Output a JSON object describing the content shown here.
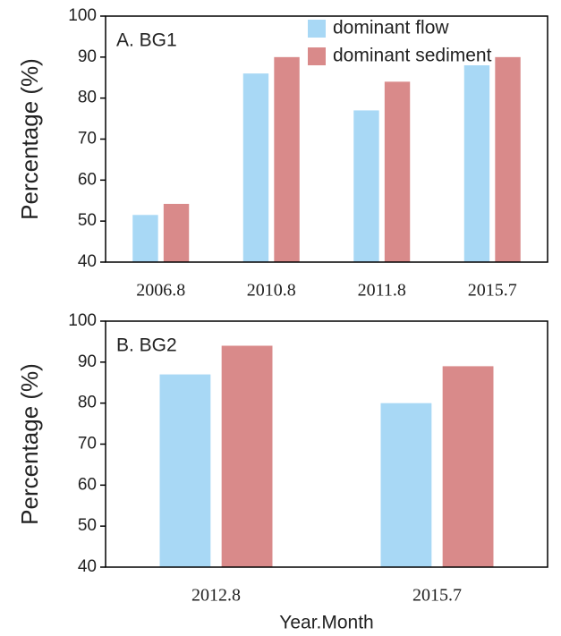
{
  "chart_data": [
    {
      "type": "bar",
      "panel_label": "A. BG1",
      "y_label": "Percentage (%)",
      "categories": [
        "2006.8",
        "2010.8",
        "2011.8",
        "2015.7"
      ],
      "series": [
        {
          "name": "dominant flow",
          "color": "#a8d8f5",
          "values": [
            51.5,
            86,
            77,
            88
          ]
        },
        {
          "name": "dominant sediment",
          "color": "#d98a8a",
          "values": [
            54.2,
            90,
            84,
            90
          ]
        }
      ],
      "ylim": [
        40,
        100
      ],
      "yticks": [
        40,
        50,
        60,
        70,
        80,
        90,
        100
      ]
    },
    {
      "type": "bar",
      "panel_label": "B. BG2",
      "y_label": "Percentage (%)",
      "x_label": "Year.Month",
      "categories": [
        "2012.8",
        "2015.7"
      ],
      "series": [
        {
          "color": "#a8d8f5",
          "values": [
            87,
            80
          ]
        },
        {
          "color": "#d98a8a",
          "values": [
            94,
            89
          ]
        }
      ],
      "ylim": [
        40,
        100
      ],
      "yticks": [
        40,
        50,
        60,
        70,
        80,
        90,
        100
      ]
    }
  ]
}
